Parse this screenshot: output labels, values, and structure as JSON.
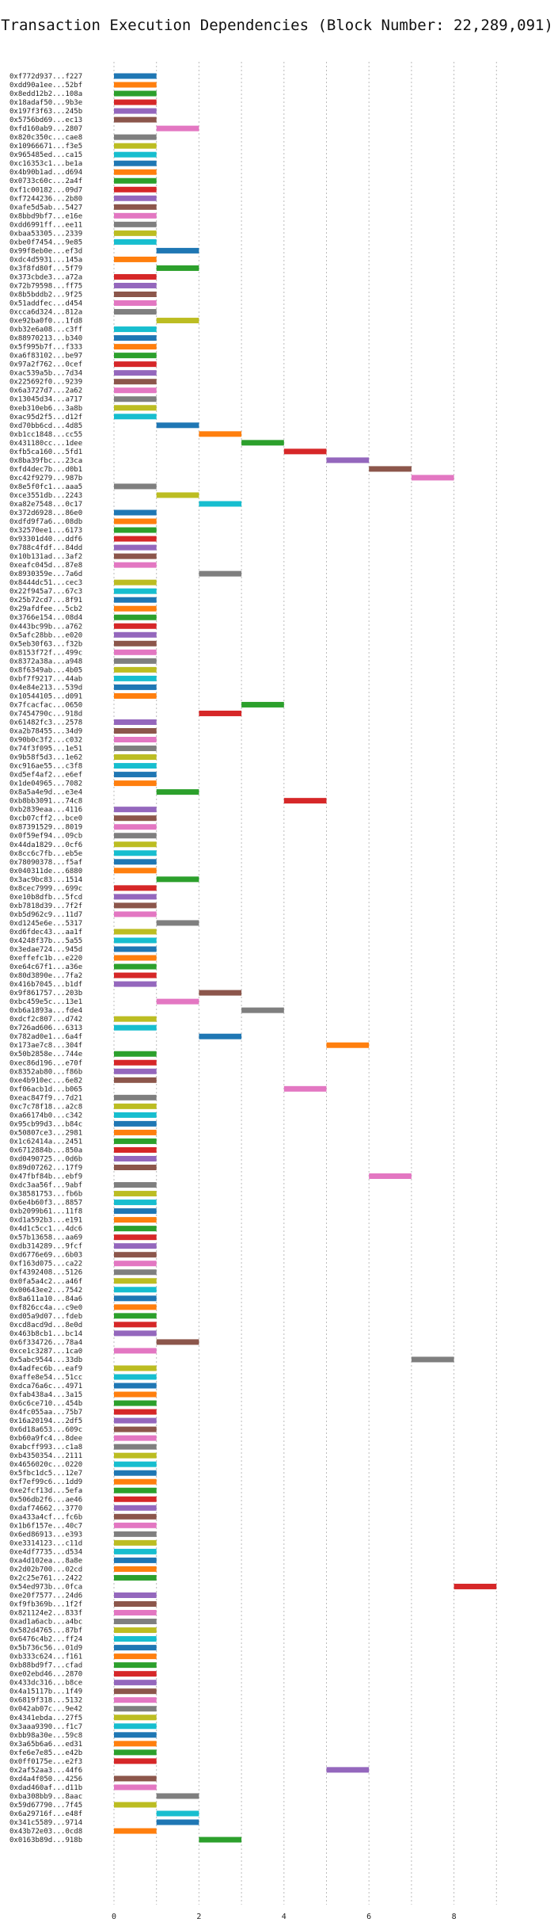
{
  "chart_data": {
    "type": "bar",
    "title": "Transaction Execution Dependencies (Block Number: 22,289,091)",
    "xlabel": "",
    "ylabel": "",
    "xlim": [
      0,
      9
    ],
    "xticks": [
      0,
      2,
      4,
      6,
      8
    ],
    "grid": true,
    "legend": "none",
    "palette": [
      "#1f77b4",
      "#ff7f0e",
      "#2ca02c",
      "#d62728",
      "#9467bd",
      "#8c564b",
      "#e377c2",
      "#7f7f7f",
      "#bcbd22",
      "#17becf"
    ],
    "transactions": [
      {
        "tx": "0xf772d937...f227",
        "start": 0,
        "end": 1
      },
      {
        "tx": "0xdd90a1ee...52bf",
        "start": 0,
        "end": 1
      },
      {
        "tx": "0x8edd12b2...108a",
        "start": 0,
        "end": 1
      },
      {
        "tx": "0x18adaf50...9b3e",
        "start": 0,
        "end": 1
      },
      {
        "tx": "0x197f3f63...245b",
        "start": 0,
        "end": 1
      },
      {
        "tx": "0x5756bd69...ec13",
        "start": 0,
        "end": 1
      },
      {
        "tx": "0xfd160ab9...2807",
        "start": 1,
        "end": 2
      },
      {
        "tx": "0x820c350c...cae8",
        "start": 0,
        "end": 1
      },
      {
        "tx": "0x10966671...f3e5",
        "start": 0,
        "end": 1
      },
      {
        "tx": "0x965485ed...ca15",
        "start": 0,
        "end": 1
      },
      {
        "tx": "0xc16353c1...be1a",
        "start": 0,
        "end": 1
      },
      {
        "tx": "0x4b90b1ad...d694",
        "start": 0,
        "end": 1
      },
      {
        "tx": "0x0733c60c...2a4f",
        "start": 0,
        "end": 1
      },
      {
        "tx": "0xf1c00182...09d7",
        "start": 0,
        "end": 1
      },
      {
        "tx": "0xf7244236...2b80",
        "start": 0,
        "end": 1
      },
      {
        "tx": "0xafe5d5ab...5427",
        "start": 0,
        "end": 1
      },
      {
        "tx": "0x8bbd9bf7...e16e",
        "start": 0,
        "end": 1
      },
      {
        "tx": "0xdd6991ff...ee11",
        "start": 0,
        "end": 1
      },
      {
        "tx": "0xbaa53305...2339",
        "start": 0,
        "end": 1
      },
      {
        "tx": "0xbe0f7454...9e85",
        "start": 0,
        "end": 1
      },
      {
        "tx": "0x99f8eb0e...ef3d",
        "start": 1,
        "end": 2
      },
      {
        "tx": "0xdc4d5931...145a",
        "start": 0,
        "end": 1
      },
      {
        "tx": "0x3f8fd80f...5f79",
        "start": 1,
        "end": 2
      },
      {
        "tx": "0x373cbde3...a72a",
        "start": 0,
        "end": 1
      },
      {
        "tx": "0x72b79598...ff75",
        "start": 0,
        "end": 1
      },
      {
        "tx": "0x8b5bddb2...9f25",
        "start": 0,
        "end": 1
      },
      {
        "tx": "0x51addfec...d454",
        "start": 0,
        "end": 1
      },
      {
        "tx": "0xcca6d324...812a",
        "start": 0,
        "end": 1
      },
      {
        "tx": "0xe92ba0f0...1fd8",
        "start": 1,
        "end": 2
      },
      {
        "tx": "0xb32e6a08...c3ff",
        "start": 0,
        "end": 1
      },
      {
        "tx": "0x88970213...b340",
        "start": 0,
        "end": 1
      },
      {
        "tx": "0x5f995b7f...f333",
        "start": 0,
        "end": 1
      },
      {
        "tx": "0xa6f83102...be97",
        "start": 0,
        "end": 1
      },
      {
        "tx": "0x97a2f762...0cef",
        "start": 0,
        "end": 1
      },
      {
        "tx": "0xac539a5b...7d34",
        "start": 0,
        "end": 1
      },
      {
        "tx": "0x225692f0...9239",
        "start": 0,
        "end": 1
      },
      {
        "tx": "0x6a3727d7...2a62",
        "start": 0,
        "end": 1
      },
      {
        "tx": "0x13045d34...a717",
        "start": 0,
        "end": 1
      },
      {
        "tx": "0xeb310eb6...3a8b",
        "start": 0,
        "end": 1
      },
      {
        "tx": "0xac95d2f5...d12f",
        "start": 0,
        "end": 1
      },
      {
        "tx": "0xd70bb6cd...4d85",
        "start": 1,
        "end": 2
      },
      {
        "tx": "0xb1cc1848...cc55",
        "start": 2,
        "end": 3
      },
      {
        "tx": "0x431180cc...1dee",
        "start": 3,
        "end": 4
      },
      {
        "tx": "0xfb5ca160...5fd1",
        "start": 4,
        "end": 5
      },
      {
        "tx": "0x8ba39fbc...23ca",
        "start": 5,
        "end": 6
      },
      {
        "tx": "0xfd4dec7b...d0b1",
        "start": 6,
        "end": 7
      },
      {
        "tx": "0xc42f9279...987b",
        "start": 7,
        "end": 8
      },
      {
        "tx": "0x8e5f0fc1...aaa5",
        "start": 0,
        "end": 1
      },
      {
        "tx": "0xce3551db...2243",
        "start": 1,
        "end": 2
      },
      {
        "tx": "0xa82e7548...0c17",
        "start": 2,
        "end": 3
      },
      {
        "tx": "0x372d6928...86e0",
        "start": 0,
        "end": 1
      },
      {
        "tx": "0xdfd9f7a6...08db",
        "start": 0,
        "end": 1
      },
      {
        "tx": "0x32570ee1...6173",
        "start": 0,
        "end": 1
      },
      {
        "tx": "0x93301d40...ddf6",
        "start": 0,
        "end": 1
      },
      {
        "tx": "0x788c4fdf...84dd",
        "start": 0,
        "end": 1
      },
      {
        "tx": "0x10b131ad...3af2",
        "start": 0,
        "end": 1
      },
      {
        "tx": "0xeafc045d...87e8",
        "start": 0,
        "end": 1
      },
      {
        "tx": "0x8930359e...7a6d",
        "start": 2,
        "end": 3
      },
      {
        "tx": "0x8444dc51...cec3",
        "start": 0,
        "end": 1
      },
      {
        "tx": "0x22f945a7...67c3",
        "start": 0,
        "end": 1
      },
      {
        "tx": "0x25b72cd7...8f91",
        "start": 0,
        "end": 1
      },
      {
        "tx": "0x29afdfee...5cb2",
        "start": 0,
        "end": 1
      },
      {
        "tx": "0x3766e154...08d4",
        "start": 0,
        "end": 1
      },
      {
        "tx": "0x443bc99b...a762",
        "start": 0,
        "end": 1
      },
      {
        "tx": "0x5afc28bb...e020",
        "start": 0,
        "end": 1
      },
      {
        "tx": "0x5eb30f63...f32b",
        "start": 0,
        "end": 1
      },
      {
        "tx": "0x8153f72f...499c",
        "start": 0,
        "end": 1
      },
      {
        "tx": "0x8372a38a...a948",
        "start": 0,
        "end": 1
      },
      {
        "tx": "0x8f6349ab...4b05",
        "start": 0,
        "end": 1
      },
      {
        "tx": "0xbf7f9217...44ab",
        "start": 0,
        "end": 1
      },
      {
        "tx": "0x4e84e213...539d",
        "start": 0,
        "end": 1
      },
      {
        "tx": "0x10544105...d091",
        "start": 0,
        "end": 1
      },
      {
        "tx": "0x7fcacfac...0650",
        "start": 3,
        "end": 4
      },
      {
        "tx": "0x7454790c...918d",
        "start": 2,
        "end": 3
      },
      {
        "tx": "0x61482fc3...2578",
        "start": 0,
        "end": 1
      },
      {
        "tx": "0xa2b78455...34d9",
        "start": 0,
        "end": 1
      },
      {
        "tx": "0x90b0c3f2...c032",
        "start": 0,
        "end": 1
      },
      {
        "tx": "0x74f3f095...1e51",
        "start": 0,
        "end": 1
      },
      {
        "tx": "0x9b58f5d3...1e62",
        "start": 0,
        "end": 1
      },
      {
        "tx": "0xc916ae55...c3f8",
        "start": 0,
        "end": 1
      },
      {
        "tx": "0xd5ef4af2...e6ef",
        "start": 0,
        "end": 1
      },
      {
        "tx": "0x1de04965...7082",
        "start": 0,
        "end": 1
      },
      {
        "tx": "0x8a5a4e9d...e3e4",
        "start": 1,
        "end": 2
      },
      {
        "tx": "0xb8bb3091...74c8",
        "start": 4,
        "end": 5
      },
      {
        "tx": "0xb2839eaa...4116",
        "start": 0,
        "end": 1
      },
      {
        "tx": "0xcb07cff2...bce0",
        "start": 0,
        "end": 1
      },
      {
        "tx": "0x87391529...8019",
        "start": 0,
        "end": 1
      },
      {
        "tx": "0x0f59ef94...09cb",
        "start": 0,
        "end": 1
      },
      {
        "tx": "0x44da1829...0cf6",
        "start": 0,
        "end": 1
      },
      {
        "tx": "0x8cc6c7fb...eb5e",
        "start": 0,
        "end": 1
      },
      {
        "tx": "0x78090378...f5af",
        "start": 0,
        "end": 1
      },
      {
        "tx": "0x040311de...6880",
        "start": 0,
        "end": 1
      },
      {
        "tx": "0x3ac9bc83...1514",
        "start": 1,
        "end": 2
      },
      {
        "tx": "0x8cec7999...699c",
        "start": 0,
        "end": 1
      },
      {
        "tx": "0xe10b8dfb...5fcd",
        "start": 0,
        "end": 1
      },
      {
        "tx": "0xb7818d39...7f2f",
        "start": 0,
        "end": 1
      },
      {
        "tx": "0xb5d962c9...11d7",
        "start": 0,
        "end": 1
      },
      {
        "tx": "0xd1245e6e...5317",
        "start": 1,
        "end": 2
      },
      {
        "tx": "0xd6fdec43...aa1f",
        "start": 0,
        "end": 1
      },
      {
        "tx": "0x4248f37b...5a55",
        "start": 0,
        "end": 1
      },
      {
        "tx": "0x3edae724...945d",
        "start": 0,
        "end": 1
      },
      {
        "tx": "0xeffefc1b...e220",
        "start": 0,
        "end": 1
      },
      {
        "tx": "0xe64c67f1...a36e",
        "start": 0,
        "end": 1
      },
      {
        "tx": "0x80d3890e...7fa2",
        "start": 0,
        "end": 1
      },
      {
        "tx": "0x416b7045...b1df",
        "start": 0,
        "end": 1
      },
      {
        "tx": "0x9f861757...203b",
        "start": 2,
        "end": 3
      },
      {
        "tx": "0xbc459e5c...13e1",
        "start": 1,
        "end": 2
      },
      {
        "tx": "0xb6a1893a...fde4",
        "start": 3,
        "end": 4
      },
      {
        "tx": "0xdcf2c807...d742",
        "start": 0,
        "end": 1
      },
      {
        "tx": "0x726ad606...6313",
        "start": 0,
        "end": 1
      },
      {
        "tx": "0x782ad0e1...6a4f",
        "start": 2,
        "end": 3
      },
      {
        "tx": "0x173ae7c8...304f",
        "start": 5,
        "end": 6
      },
      {
        "tx": "0x50b2858e...744e",
        "start": 0,
        "end": 1
      },
      {
        "tx": "0xec86d196...e70f",
        "start": 0,
        "end": 1
      },
      {
        "tx": "0x8352ab80...f86b",
        "start": 0,
        "end": 1
      },
      {
        "tx": "0xe4b910ec...6e82",
        "start": 0,
        "end": 1
      },
      {
        "tx": "0xf06acb1d...b065",
        "start": 4,
        "end": 5
      },
      {
        "tx": "0xeac847f9...7d21",
        "start": 0,
        "end": 1
      },
      {
        "tx": "0xc7c78f18...a2c8",
        "start": 0,
        "end": 1
      },
      {
        "tx": "0xa66174b0...c342",
        "start": 0,
        "end": 1
      },
      {
        "tx": "0x95cb99d3...b84c",
        "start": 0,
        "end": 1
      },
      {
        "tx": "0x50807ce3...2981",
        "start": 0,
        "end": 1
      },
      {
        "tx": "0x1c62414a...2451",
        "start": 0,
        "end": 1
      },
      {
        "tx": "0x6712884b...850a",
        "start": 0,
        "end": 1
      },
      {
        "tx": "0xd0490725...0d6b",
        "start": 0,
        "end": 1
      },
      {
        "tx": "0x89d07262...17f9",
        "start": 0,
        "end": 1
      },
      {
        "tx": "0x47fbf84b...ebf9",
        "start": 6,
        "end": 7
      },
      {
        "tx": "0xdc3aa56f...9abf",
        "start": 0,
        "end": 1
      },
      {
        "tx": "0x38581753...fb6b",
        "start": 0,
        "end": 1
      },
      {
        "tx": "0x6e4b60f3...8857",
        "start": 0,
        "end": 1
      },
      {
        "tx": "0xb2099b61...11f8",
        "start": 0,
        "end": 1
      },
      {
        "tx": "0xd1a592b3...e191",
        "start": 0,
        "end": 1
      },
      {
        "tx": "0x4d1c5cc1...4dc6",
        "start": 0,
        "end": 1
      },
      {
        "tx": "0x57b13658...aa69",
        "start": 0,
        "end": 1
      },
      {
        "tx": "0xdb314289...9fcf",
        "start": 0,
        "end": 1
      },
      {
        "tx": "0xd6776e69...6b03",
        "start": 0,
        "end": 1
      },
      {
        "tx": "0xf163d075...ca22",
        "start": 0,
        "end": 1
      },
      {
        "tx": "0xf4392408...5126",
        "start": 0,
        "end": 1
      },
      {
        "tx": "0x0fa5a4c2...a46f",
        "start": 0,
        "end": 1
      },
      {
        "tx": "0x00643ee2...7542",
        "start": 0,
        "end": 1
      },
      {
        "tx": "0x8a611a10...84a6",
        "start": 0,
        "end": 1
      },
      {
        "tx": "0xf826cc4a...c9e0",
        "start": 0,
        "end": 1
      },
      {
        "tx": "0xd05a9d07...fdeb",
        "start": 0,
        "end": 1
      },
      {
        "tx": "0xcd8acd9d...8e0d",
        "start": 0,
        "end": 1
      },
      {
        "tx": "0x463b8cb1...bc14",
        "start": 0,
        "end": 1
      },
      {
        "tx": "0x6f334726...78a4",
        "start": 1,
        "end": 2
      },
      {
        "tx": "0xce1c3287...1ca0",
        "start": 0,
        "end": 1
      },
      {
        "tx": "0x5abc9544...33db",
        "start": 7,
        "end": 8
      },
      {
        "tx": "0x4adfec6b...eaf9",
        "start": 0,
        "end": 1
      },
      {
        "tx": "0xaffe8e54...51cc",
        "start": 0,
        "end": 1
      },
      {
        "tx": "0xdca76a6c...4971",
        "start": 0,
        "end": 1
      },
      {
        "tx": "0xfab438a4...3a15",
        "start": 0,
        "end": 1
      },
      {
        "tx": "0x6c6ce710...454b",
        "start": 0,
        "end": 1
      },
      {
        "tx": "0x4fc055aa...75b7",
        "start": 0,
        "end": 1
      },
      {
        "tx": "0x16a20194...2df5",
        "start": 0,
        "end": 1
      },
      {
        "tx": "0x6d18a653...609c",
        "start": 0,
        "end": 1
      },
      {
        "tx": "0xb60a9fc4...8dee",
        "start": 0,
        "end": 1
      },
      {
        "tx": "0xabcff993...c1a8",
        "start": 0,
        "end": 1
      },
      {
        "tx": "0xb4350354...2111",
        "start": 0,
        "end": 1
      },
      {
        "tx": "0x4656020c...0220",
        "start": 0,
        "end": 1
      },
      {
        "tx": "0x5fbc1dc5...12e7",
        "start": 0,
        "end": 1
      },
      {
        "tx": "0xf7ef99c6...1dd9",
        "start": 0,
        "end": 1
      },
      {
        "tx": "0xe2fcf13d...5efa",
        "start": 0,
        "end": 1
      },
      {
        "tx": "0x506db2f6...ae46",
        "start": 0,
        "end": 1
      },
      {
        "tx": "0xdaf74662...3770",
        "start": 0,
        "end": 1
      },
      {
        "tx": "0xa433a4cf...fc6b",
        "start": 0,
        "end": 1
      },
      {
        "tx": "0x1b6f157e...40c7",
        "start": 0,
        "end": 1
      },
      {
        "tx": "0x6ed86913...e393",
        "start": 0,
        "end": 1
      },
      {
        "tx": "0xe3314123...c11d",
        "start": 0,
        "end": 1
      },
      {
        "tx": "0xe4df7735...d534",
        "start": 0,
        "end": 1
      },
      {
        "tx": "0xa4d102ea...8a8e",
        "start": 0,
        "end": 1
      },
      {
        "tx": "0x2d02b700...02cd",
        "start": 0,
        "end": 1
      },
      {
        "tx": "0x2c25e761...2422",
        "start": 0,
        "end": 1
      },
      {
        "tx": "0x54ed973b...0fca",
        "start": 8,
        "end": 9
      },
      {
        "tx": "0xe20f7577...24d6",
        "start": 0,
        "end": 1
      },
      {
        "tx": "0xf9fb369b...1f2f",
        "start": 0,
        "end": 1
      },
      {
        "tx": "0x821124e2...833f",
        "start": 0,
        "end": 1
      },
      {
        "tx": "0xad1a6acb...a4bc",
        "start": 0,
        "end": 1
      },
      {
        "tx": "0x582d4765...87bf",
        "start": 0,
        "end": 1
      },
      {
        "tx": "0x6476c4b2...ff24",
        "start": 0,
        "end": 1
      },
      {
        "tx": "0x5b736c56...01d9",
        "start": 0,
        "end": 1
      },
      {
        "tx": "0xb333c624...f161",
        "start": 0,
        "end": 1
      },
      {
        "tx": "0xb88bd9f7...cfad",
        "start": 0,
        "end": 1
      },
      {
        "tx": "0xe02ebd46...2870",
        "start": 0,
        "end": 1
      },
      {
        "tx": "0x433dc316...b8ce",
        "start": 0,
        "end": 1
      },
      {
        "tx": "0x4a15117b...1f49",
        "start": 0,
        "end": 1
      },
      {
        "tx": "0x6819f318...5132",
        "start": 0,
        "end": 1
      },
      {
        "tx": "0x042ab07c...9e42",
        "start": 0,
        "end": 1
      },
      {
        "tx": "0x4341ebda...27f5",
        "start": 0,
        "end": 1
      },
      {
        "tx": "0x3aaa9390...f1c7",
        "start": 0,
        "end": 1
      },
      {
        "tx": "0xbb98a30e...59c8",
        "start": 0,
        "end": 1
      },
      {
        "tx": "0x3a65b6a6...ed31",
        "start": 0,
        "end": 1
      },
      {
        "tx": "0xfe6e7e85...e42b",
        "start": 0,
        "end": 1
      },
      {
        "tx": "0x0ff0175e...e2f3",
        "start": 0,
        "end": 1
      },
      {
        "tx": "0x2af52aa3...44f6",
        "start": 5,
        "end": 6
      },
      {
        "tx": "0xd4a4f050...4256",
        "start": 0,
        "end": 1
      },
      {
        "tx": "0xdad460af...d11b",
        "start": 0,
        "end": 1
      },
      {
        "tx": "0xba308bb9...8aac",
        "start": 1,
        "end": 2
      },
      {
        "tx": "0x59d67790...7f45",
        "start": 0,
        "end": 1
      },
      {
        "tx": "0x6a29716f...e48f",
        "start": 1,
        "end": 2
      },
      {
        "tx": "0x341c5589...9714",
        "start": 1,
        "end": 2
      },
      {
        "tx": "0x43b72e03...0cd8",
        "start": 0,
        "end": 1
      },
      {
        "tx": "0x0163b89d...918b",
        "start": 2,
        "end": 3
      }
    ]
  }
}
